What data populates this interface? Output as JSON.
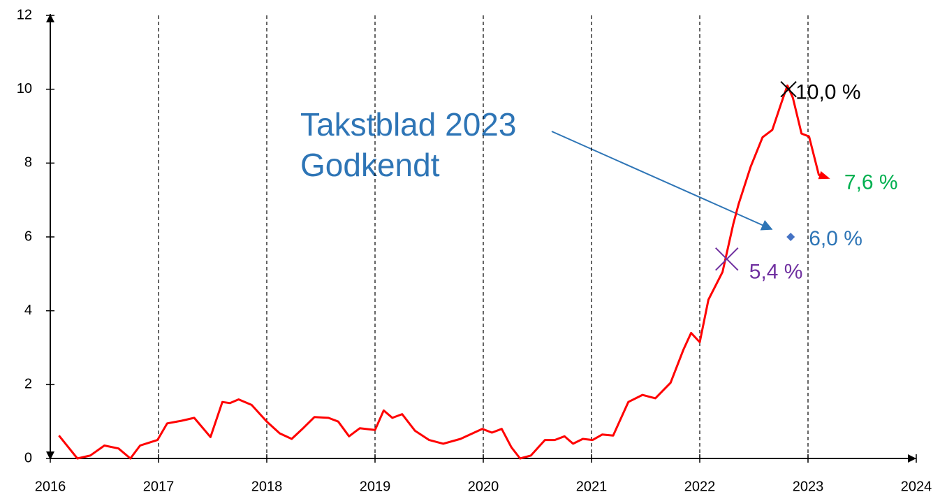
{
  "chart_data": {
    "type": "line",
    "annotation": [
      "Takstblad 2023",
      "Godkendt"
    ],
    "xlim": [
      2016,
      2024
    ],
    "xticks": [
      2016,
      2017,
      2018,
      2019,
      2020,
      2021,
      2022,
      2023,
      2024
    ],
    "ylim": [
      0,
      12
    ],
    "yticks": [
      0,
      2,
      4,
      6,
      8,
      10,
      12
    ],
    "grid": true,
    "series": [
      {
        "color": "#ff0000",
        "x": [
          2016.08,
          2016.25,
          2016.37,
          2016.5,
          2016.63,
          2016.74,
          2016.83,
          2016.99,
          2017.08,
          2017.21,
          2017.33,
          2017.48,
          2017.59,
          2017.66,
          2017.74,
          2017.86,
          2018.0,
          2018.12,
          2018.23,
          2018.34,
          2018.44,
          2018.57,
          2018.66,
          2018.76,
          2018.86,
          2019.0,
          2019.08,
          2019.16,
          2019.25,
          2019.37,
          2019.5,
          2019.63,
          2019.79,
          2019.99,
          2020.08,
          2020.17,
          2020.26,
          2020.34,
          2020.44,
          2020.57,
          2020.66,
          2020.75,
          2020.83,
          2020.92,
          2021.01,
          2021.1,
          2021.2,
          2021.34,
          2021.47,
          2021.59,
          2021.73,
          2021.85,
          2021.92,
          2022.0,
          2022.08,
          2022.21,
          2022.31,
          2022.36,
          2022.47,
          2022.58,
          2022.67,
          2022.75,
          2022.81,
          2022.86,
          2022.94,
          2023.01,
          2023.1,
          2023.18
        ],
        "values": [
          0.62,
          0.0,
          0.08,
          0.35,
          0.27,
          0.0,
          0.35,
          0.5,
          0.95,
          1.02,
          1.1,
          0.58,
          1.53,
          1.5,
          1.6,
          1.45,
          1.0,
          0.68,
          0.53,
          0.83,
          1.12,
          1.1,
          1.0,
          0.6,
          0.82,
          0.77,
          1.3,
          1.1,
          1.2,
          0.75,
          0.5,
          0.4,
          0.53,
          0.8,
          0.7,
          0.8,
          0.3,
          0.0,
          0.08,
          0.5,
          0.5,
          0.6,
          0.4,
          0.53,
          0.5,
          0.65,
          0.62,
          1.53,
          1.72,
          1.63,
          2.05,
          2.95,
          3.4,
          3.15,
          4.3,
          5.05,
          6.35,
          6.9,
          7.9,
          8.7,
          8.9,
          9.6,
          10.1,
          9.77,
          8.8,
          8.72,
          7.68,
          7.6
        ]
      }
    ],
    "markers": [
      {
        "x": 2022.82,
        "value": 10.0,
        "label": "10,0 %",
        "color": "#000000",
        "marker": "x"
      },
      {
        "x": 2023.18,
        "value": 7.6,
        "label": "7,6 %",
        "color": "#00b050",
        "marker": "none"
      },
      {
        "x": 2022.84,
        "value": 6.0,
        "label": "6,0 %",
        "color": "#2e75b6",
        "marker": "diamond"
      },
      {
        "x": 2022.25,
        "value": 5.4,
        "label": "5,4 %",
        "color": "#7030a0",
        "marker": "x"
      }
    ]
  }
}
